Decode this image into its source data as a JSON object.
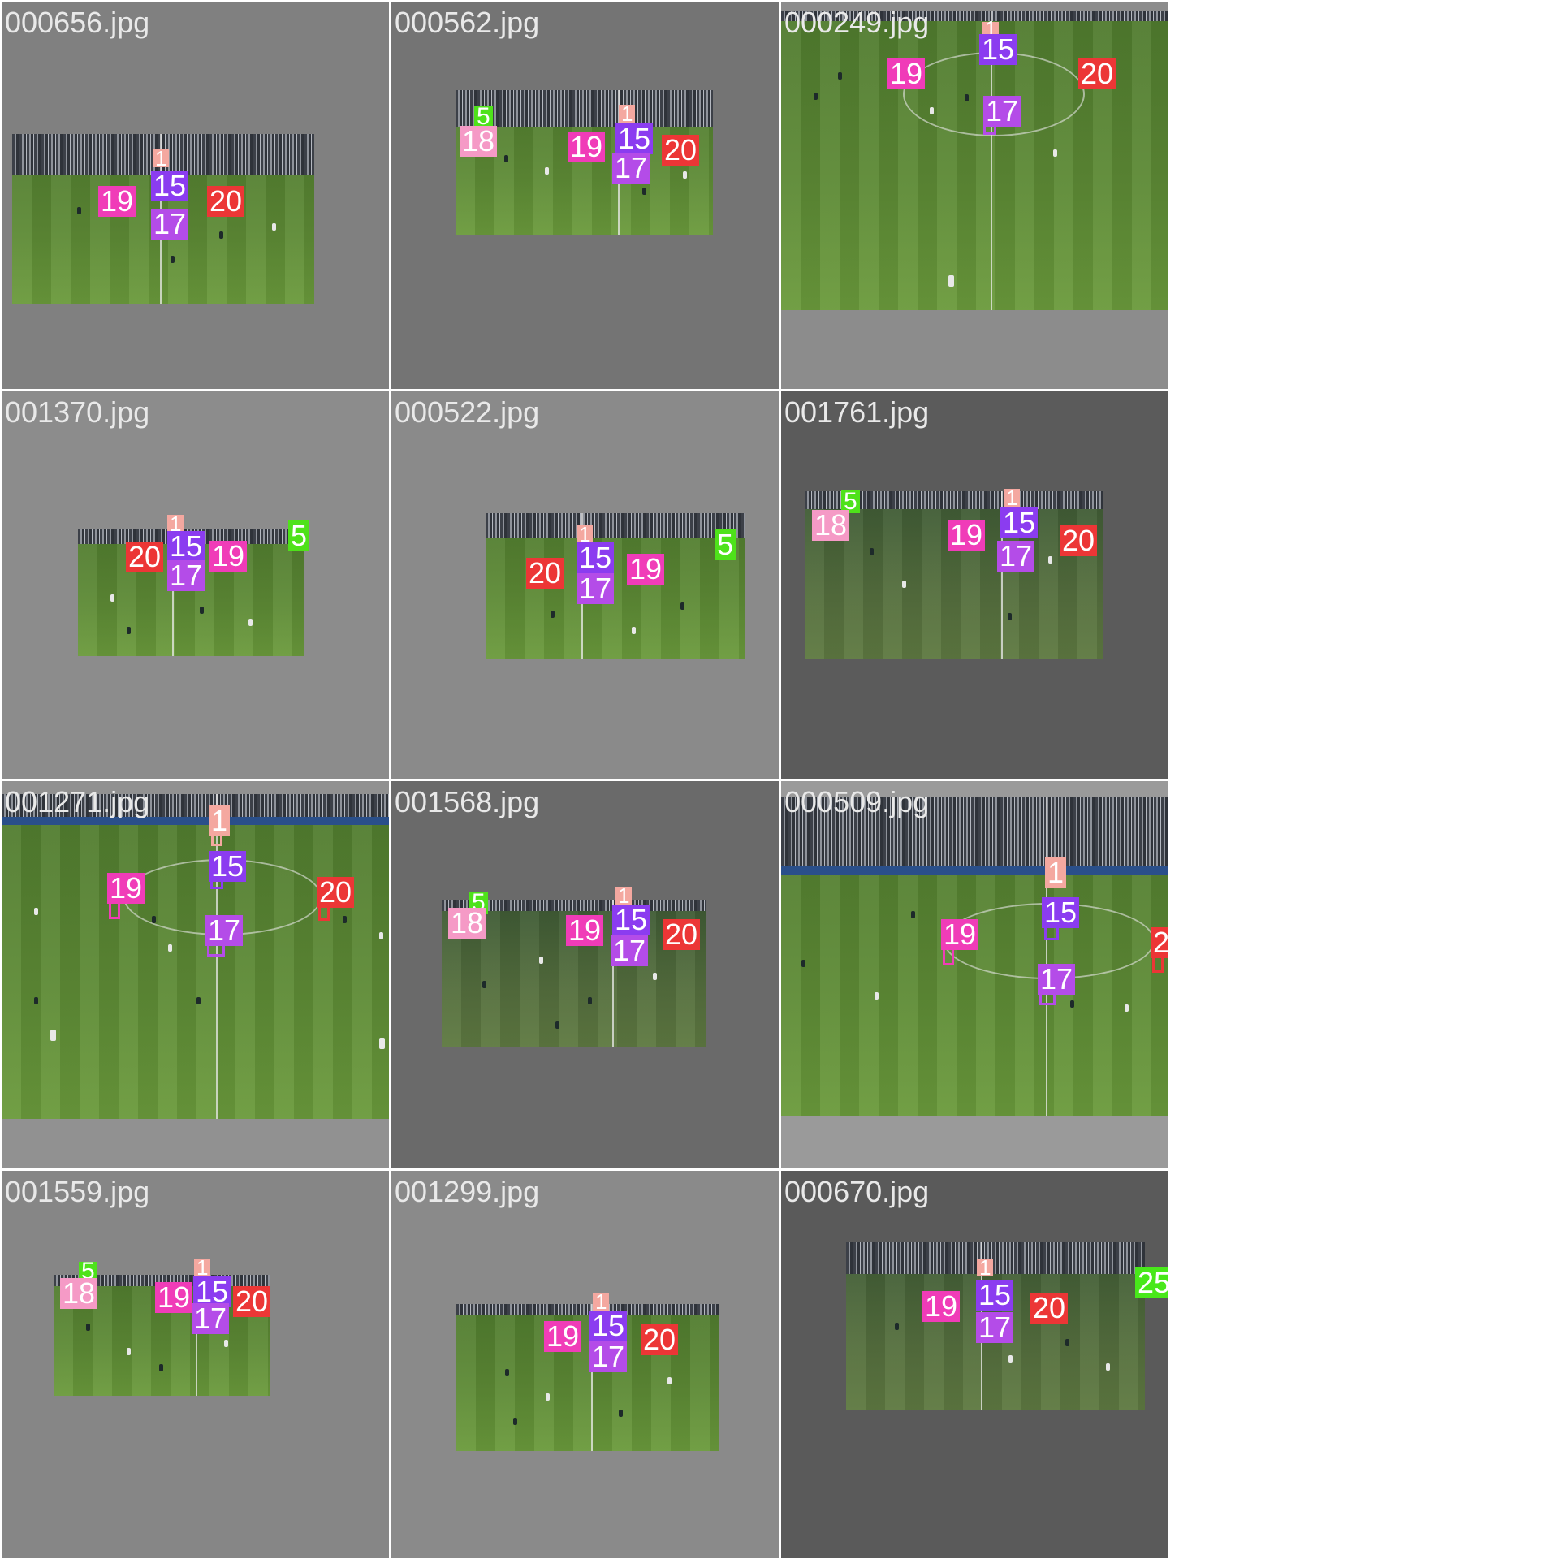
{
  "tiles": [
    {
      "label": "000656.jpg",
      "bg": "#808080"
    },
    {
      "label": "000562.jpg",
      "bg": "#747474"
    },
    {
      "label": "000249.jpg",
      "bg": "#8c8c8c"
    },
    {
      "label": "001370.jpg",
      "bg": "#8c8c8c"
    },
    {
      "label": "000522.jpg",
      "bg": "#8a8a8a"
    },
    {
      "label": "001761.jpg",
      "bg": "#5b5b5b"
    },
    {
      "label": "001271.jpg",
      "bg": "#919191"
    },
    {
      "label": "001568.jpg",
      "bg": "#6a6a6a"
    },
    {
      "label": "000509.jpg",
      "bg": "#9a9a9a"
    },
    {
      "label": "001559.jpg",
      "bg": "#868686"
    },
    {
      "label": "001299.jpg",
      "bg": "#8a8a8a"
    },
    {
      "label": "000670.jpg",
      "bg": "#5a5a5a"
    }
  ],
  "ids": {
    "id1": "1",
    "id5": "5",
    "id15": "15",
    "id17": "17",
    "id18": "18",
    "id19": "19",
    "id20": "20",
    "id25": "25"
  },
  "colors": {
    "id1": "#f4a8a0",
    "id5": "#4ee21a",
    "id15": "#8b3cf0",
    "id17": "#b44ce8",
    "id18": "#f59ac6",
    "id19": "#f03cb8",
    "id20": "#ec3636",
    "id25": "#48e81a"
  }
}
